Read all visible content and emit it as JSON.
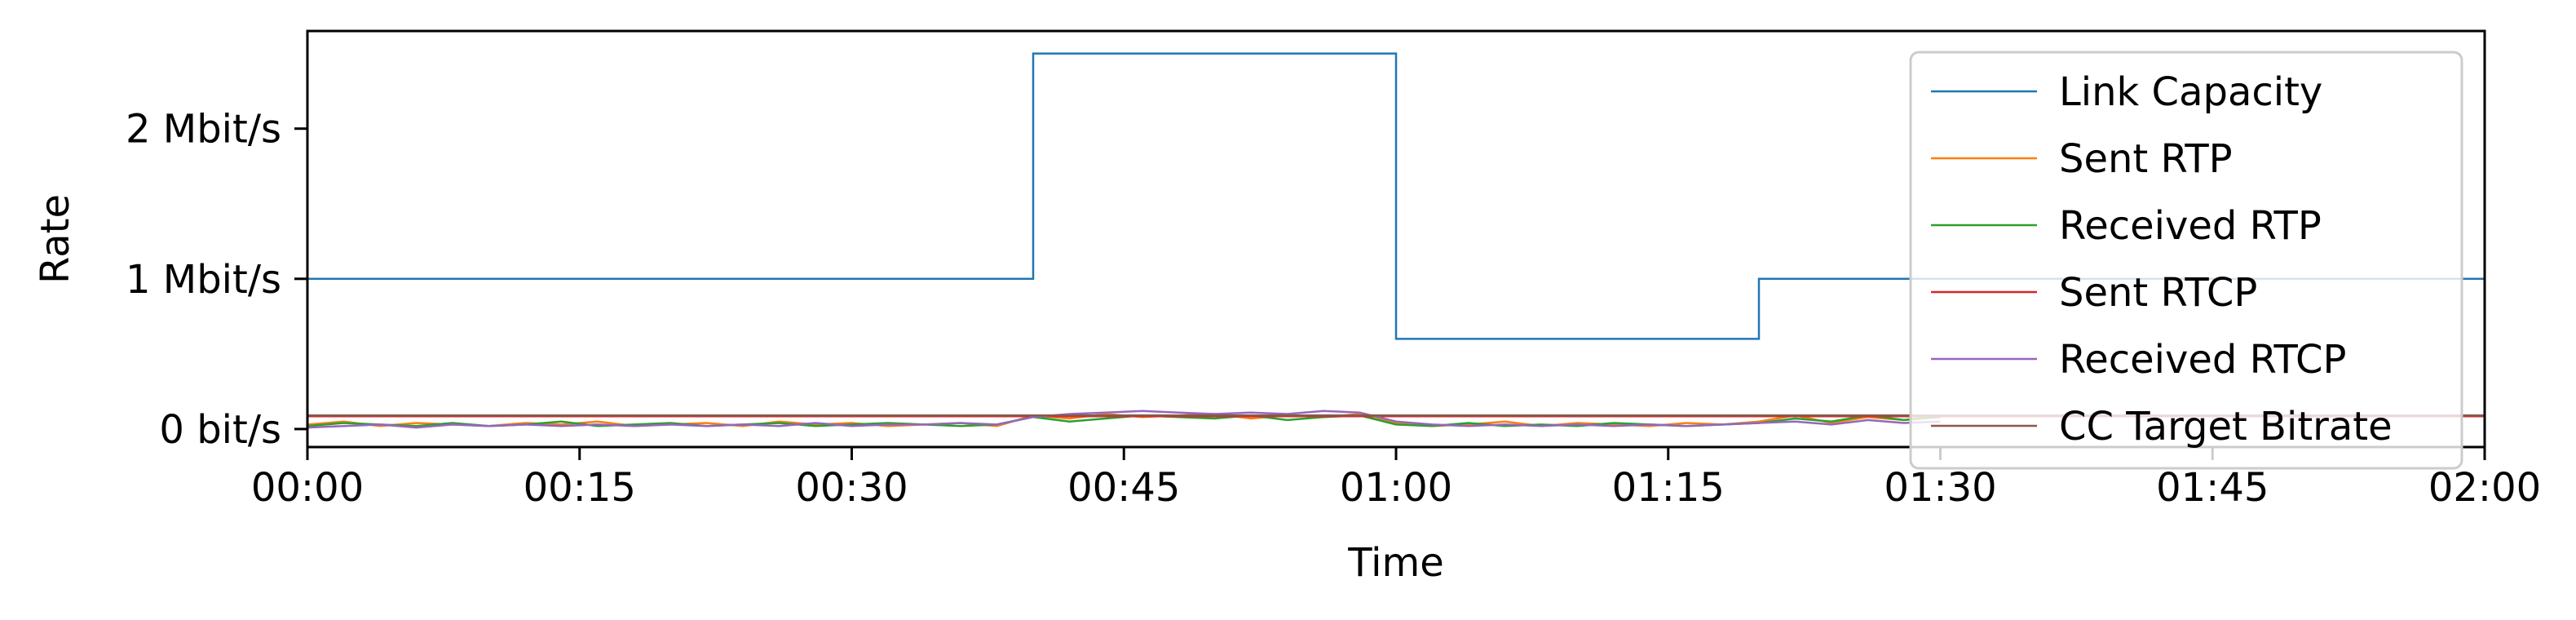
{
  "chart_data": {
    "type": "line",
    "title": "",
    "xlabel": "Time",
    "ylabel": "Rate",
    "xlim": [
      0,
      120
    ],
    "ylim": [
      -0.12,
      2.65
    ],
    "x_ticks": [
      {
        "value": 0,
        "label": "00:00"
      },
      {
        "value": 15,
        "label": "00:15"
      },
      {
        "value": 30,
        "label": "00:30"
      },
      {
        "value": 45,
        "label": "00:45"
      },
      {
        "value": 60,
        "label": "01:00"
      },
      {
        "value": 75,
        "label": "01:15"
      },
      {
        "value": 90,
        "label": "01:30"
      },
      {
        "value": 105,
        "label": "01:45"
      },
      {
        "value": 120,
        "label": "02:00"
      }
    ],
    "y_ticks": [
      {
        "value": 0,
        "label": "0 bit/s"
      },
      {
        "value": 1,
        "label": "1 Mbit/s"
      },
      {
        "value": 2,
        "label": "2 Mbit/s"
      }
    ],
    "grid": false,
    "legend_position": "top-right",
    "series": [
      {
        "name": "Link Capacity",
        "color": "#1f77b4",
        "x": [
          0,
          40,
          40,
          60,
          60,
          80,
          80,
          120
        ],
        "y": [
          1.0,
          1.0,
          2.5,
          2.5,
          0.6,
          0.6,
          1.0,
          1.0
        ]
      },
      {
        "name": "Sent RTP",
        "color": "#ff7f0e",
        "x": [
          0,
          2,
          4,
          6,
          8,
          10,
          12,
          14,
          16,
          18,
          20,
          22,
          24,
          26,
          28,
          30,
          32,
          34,
          36,
          38,
          40,
          42,
          44,
          46,
          48,
          50,
          52,
          54,
          56,
          58,
          60,
          62,
          64,
          66,
          68,
          70,
          72,
          74,
          76,
          78,
          80,
          82,
          84,
          86,
          88,
          90
        ],
        "y": [
          0.03,
          0.05,
          0.02,
          0.04,
          0.03,
          0.02,
          0.04,
          0.03,
          0.05,
          0.02,
          0.03,
          0.04,
          0.02,
          0.05,
          0.03,
          0.04,
          0.02,
          0.03,
          0.04,
          0.02,
          0.09,
          0.07,
          0.1,
          0.08,
          0.09,
          0.1,
          0.07,
          0.09,
          0.08,
          0.1,
          0.04,
          0.02,
          0.03,
          0.05,
          0.02,
          0.04,
          0.03,
          0.02,
          0.04,
          0.03,
          0.05,
          0.09,
          0.04,
          0.08,
          0.06,
          0.09
        ]
      },
      {
        "name": "Received RTP",
        "color": "#2ca02c",
        "x": [
          0,
          2,
          4,
          6,
          8,
          10,
          12,
          14,
          16,
          18,
          20,
          22,
          24,
          26,
          28,
          30,
          32,
          34,
          36,
          38,
          40,
          42,
          44,
          46,
          48,
          50,
          52,
          54,
          56,
          58,
          60,
          62,
          64,
          66,
          68,
          70,
          72,
          74,
          76,
          78,
          80,
          82,
          84,
          86,
          88,
          90
        ],
        "y": [
          0.02,
          0.04,
          0.03,
          0.02,
          0.04,
          0.02,
          0.03,
          0.05,
          0.02,
          0.03,
          0.04,
          0.02,
          0.03,
          0.04,
          0.02,
          0.03,
          0.04,
          0.03,
          0.02,
          0.03,
          0.08,
          0.05,
          0.07,
          0.09,
          0.08,
          0.07,
          0.09,
          0.06,
          0.08,
          0.09,
          0.03,
          0.02,
          0.04,
          0.02,
          0.03,
          0.02,
          0.04,
          0.03,
          0.02,
          0.03,
          0.04,
          0.07,
          0.05,
          0.09,
          0.06,
          0.08
        ]
      },
      {
        "name": "Sent RTCP",
        "color": "#d62728",
        "x": [
          0,
          120
        ],
        "y": [
          0.085,
          0.085
        ]
      },
      {
        "name": "Received RTCP",
        "color": "#9467bd",
        "x": [
          0,
          2,
          4,
          6,
          8,
          10,
          12,
          14,
          16,
          18,
          20,
          22,
          24,
          26,
          28,
          30,
          32,
          34,
          36,
          38,
          40,
          42,
          44,
          46,
          48,
          50,
          52,
          54,
          56,
          58,
          60,
          62,
          64,
          66,
          68,
          70,
          72,
          74,
          76,
          78,
          80,
          82,
          84,
          86,
          88,
          90
        ],
        "y": [
          0.01,
          0.02,
          0.03,
          0.01,
          0.03,
          0.02,
          0.03,
          0.02,
          0.03,
          0.02,
          0.03,
          0.02,
          0.03,
          0.02,
          0.04,
          0.02,
          0.03,
          0.03,
          0.04,
          0.03,
          0.08,
          0.1,
          0.11,
          0.12,
          0.11,
          0.1,
          0.11,
          0.1,
          0.12,
          0.11,
          0.05,
          0.03,
          0.02,
          0.03,
          0.02,
          0.03,
          0.02,
          0.03,
          0.02,
          0.03,
          0.04,
          0.05,
          0.03,
          0.06,
          0.04,
          0.05
        ]
      },
      {
        "name": "CC Target Bitrate",
        "color": "#8c564b",
        "x": [
          0,
          120
        ],
        "y": [
          0.09,
          0.09
        ]
      }
    ]
  }
}
